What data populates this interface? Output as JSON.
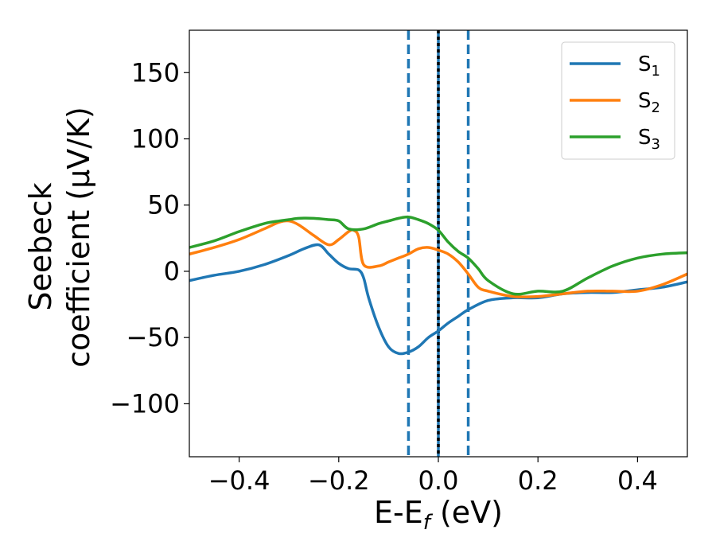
{
  "chart_data": {
    "type": "line",
    "xlabel": "E-E",
    "xlabel_sub": "f",
    "xlabel_unit": " (eV)",
    "ylabel_line1": "Seebeck",
    "ylabel_line2": "coefficient  (μV/K)",
    "xlim": [
      -0.5,
      0.5
    ],
    "ylim": [
      -140,
      182
    ],
    "xticks": [
      -0.4,
      -0.2,
      0.0,
      0.2,
      0.4
    ],
    "xtick_labels": [
      "−0.4",
      "−0.2",
      "0.0",
      "0.2",
      "0.4"
    ],
    "yticks": [
      -100,
      -50,
      0,
      50,
      100,
      150
    ],
    "ytick_labels": [
      "−100",
      "−50",
      "0",
      "50",
      "100",
      "150"
    ],
    "legend_position": "top-right",
    "series": [
      {
        "name": "S",
        "name_sub": "1",
        "color": "#1f77b4",
        "x": [
          -0.5,
          -0.45,
          -0.4,
          -0.35,
          -0.3,
          -0.27,
          -0.24,
          -0.22,
          -0.2,
          -0.18,
          -0.16,
          -0.15,
          -0.14,
          -0.12,
          -0.1,
          -0.08,
          -0.06,
          -0.04,
          -0.02,
          0.0,
          0.02,
          0.04,
          0.06,
          0.1,
          0.15,
          0.2,
          0.25,
          0.3,
          0.35,
          0.4,
          0.45,
          0.5
        ],
        "y": [
          -7,
          -3,
          0,
          5,
          12,
          17,
          20,
          13,
          6,
          2,
          1,
          -5,
          -20,
          -42,
          -57,
          -62,
          -61,
          -57,
          -50,
          -45,
          -39,
          -34,
          -29,
          -22,
          -20,
          -20,
          -17,
          -16,
          -16,
          -14,
          -12,
          -8
        ]
      },
      {
        "name": "S",
        "name_sub": "2",
        "color": "#ff7f0e",
        "x": [
          -0.5,
          -0.45,
          -0.4,
          -0.35,
          -0.32,
          -0.3,
          -0.28,
          -0.25,
          -0.22,
          -0.2,
          -0.18,
          -0.17,
          -0.16,
          -0.15,
          -0.12,
          -0.1,
          -0.08,
          -0.06,
          -0.04,
          -0.02,
          0.0,
          0.02,
          0.04,
          0.06,
          0.08,
          0.1,
          0.15,
          0.2,
          0.25,
          0.3,
          0.35,
          0.4,
          0.45,
          0.5
        ],
        "y": [
          13,
          18,
          24,
          32,
          37,
          38,
          35,
          27,
          20,
          24,
          30,
          31,
          26,
          5,
          4,
          7,
          10,
          13,
          17,
          18,
          16,
          13,
          7,
          -2,
          -12,
          -15,
          -19,
          -19,
          -17,
          -15,
          -15,
          -15,
          -10,
          -2
        ]
      },
      {
        "name": "S",
        "name_sub": "3",
        "color": "#2ca02c",
        "x": [
          -0.5,
          -0.45,
          -0.4,
          -0.35,
          -0.32,
          -0.3,
          -0.28,
          -0.25,
          -0.22,
          -0.2,
          -0.18,
          -0.15,
          -0.12,
          -0.1,
          -0.08,
          -0.06,
          -0.04,
          -0.02,
          0.0,
          0.02,
          0.04,
          0.06,
          0.08,
          0.1,
          0.15,
          0.2,
          0.25,
          0.3,
          0.35,
          0.4,
          0.45,
          0.5
        ],
        "y": [
          18,
          23,
          30,
          36,
          38,
          39,
          40,
          40,
          39,
          38,
          32,
          32,
          36,
          38,
          40,
          41,
          39,
          36,
          31,
          22,
          15,
          10,
          2,
          -7,
          -17,
          -15,
          -15,
          -5,
          4,
          10,
          13,
          14
        ]
      }
    ],
    "vlines": [
      {
        "x": -0.06,
        "color": "#1f77b4",
        "style": "dashed"
      },
      {
        "x": 0.06,
        "color": "#1f77b4",
        "style": "dashed"
      },
      {
        "x": 0.0,
        "color": "#1f77b4",
        "style": "solid"
      },
      {
        "x": 0.0,
        "color": "#000000",
        "style": "dotted"
      }
    ]
  }
}
